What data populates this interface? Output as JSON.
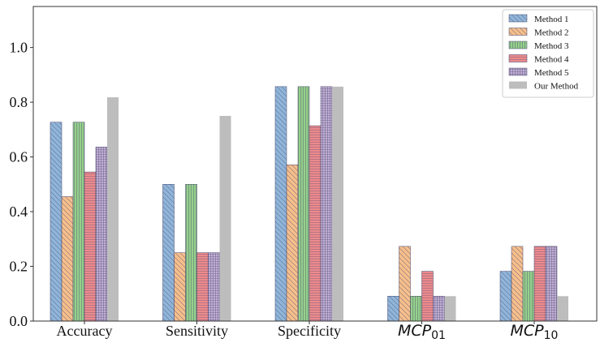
{
  "chart_data": {
    "type": "bar",
    "categories": [
      "Accuracy",
      "Sensitivity",
      "Specificity",
      "MCP01",
      "MCP10"
    ],
    "category_labels": [
      {
        "text": "Accuracy",
        "base": "",
        "sub": ""
      },
      {
        "text": "Sensitivity",
        "base": "",
        "sub": ""
      },
      {
        "text": "Specificity",
        "base": "",
        "sub": ""
      },
      {
        "text": "",
        "base": "MCP",
        "sub": "01"
      },
      {
        "text": "",
        "base": "MCP",
        "sub": "10"
      }
    ],
    "series": [
      {
        "name": "Method 1",
        "values": [
          0.727,
          0.5,
          0.857,
          0.091,
          0.182
        ],
        "color": "#8fb6da",
        "pattern": "backslash"
      },
      {
        "name": "Method 2",
        "values": [
          0.455,
          0.25,
          0.571,
          0.273,
          0.273
        ],
        "color": "#f7bf8b",
        "pattern": "backslash"
      },
      {
        "name": "Method 3",
        "values": [
          0.727,
          0.5,
          0.857,
          0.091,
          0.182
        ],
        "color": "#94d08a",
        "pattern": "vertical"
      },
      {
        "name": "Method 4",
        "values": [
          0.545,
          0.25,
          0.714,
          0.182,
          0.273
        ],
        "color": "#ee8a8c",
        "pattern": "horizontal"
      },
      {
        "name": "Method 5",
        "values": [
          0.636,
          0.25,
          0.857,
          0.091,
          0.273
        ],
        "color": "#c3aed6",
        "pattern": "grid"
      },
      {
        "name": "Our Method",
        "values": [
          0.818,
          0.75,
          0.857,
          0.091,
          0.091
        ],
        "color": "#bdbdbd",
        "pattern": "none"
      }
    ],
    "y_ticks": [
      "0.0",
      "0.2",
      "0.4",
      "0.6",
      "0.8",
      "1.0"
    ],
    "ylim": [
      0,
      1.15
    ],
    "title": "",
    "xlabel": "",
    "ylabel": "",
    "grid": false,
    "legend_position": "top-right"
  }
}
